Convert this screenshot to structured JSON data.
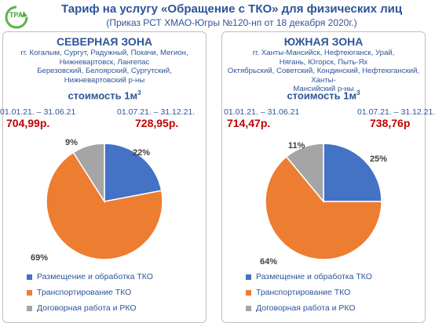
{
  "main": {
    "logo_text": "ТРА-",
    "page_title": "Тариф на услугу «Обращение с ТКО» для физических лиц",
    "subtitle": "(Приказ РСТ ХМАО-Югры №120-нп от 18 декабря 2020г.)"
  },
  "colors": {
    "text_blue": "#2e5597",
    "price_red": "#c00000",
    "slice_placement": "#4472c4",
    "slice_transport": "#ed7d31",
    "slice_contract": "#a5a5a5"
  },
  "left": {
    "zone_name": "СЕВЕРНАЯ ЗОНА",
    "cities": [
      "гг. Когалым, Сургут, Радужный, Покачи, Мегион,",
      "Нижневартовск, Лангепас",
      "Березовский, Белоярский, Сургутский,",
      "Нижневартовский р-ны"
    ],
    "cost_label": "стоимость 1м",
    "cost_unit_sup": "3",
    "period1": "01.01.21. – 31.06.21",
    "price1": "704,99р.",
    "period2": "01.07.21. – 31.12.21.",
    "price2": "728,95р."
  },
  "right": {
    "zone_name": "ЮЖНАЯ ЗОНА",
    "cities": [
      "гг. Ханты-Мансийск, Нефтеюганск, Урай,",
      "Нягань, Югорск, Пыть-Ях",
      "Октябрьский, Советский, Кондинский, Нефтеюганский, Ханты-",
      "Мансийский р-ны"
    ],
    "cost_label": "стоимость 1м",
    "cost_unit_sup": "3",
    "period1": "01.01.21. – 31.06.21",
    "price1": "714,47р.",
    "period2": "01.07.21. – 31.12.21.",
    "price2": "738,76р"
  },
  "chart_data": [
    {
      "type": "pie",
      "categories": [
        "Размещение и обработка ТКО",
        "Транспортирование ТКО",
        "Договорная работа и РКО"
      ],
      "values": [
        22,
        69,
        9
      ],
      "labels": [
        "22%",
        "69%",
        "9%"
      ],
      "legend_position": "bottom"
    },
    {
      "type": "pie",
      "categories": [
        "Размещение и обработка ТКО",
        "Транспортирование ТКО",
        "Договорная работа и РКО"
      ],
      "values": [
        25,
        64,
        11
      ],
      "labels": [
        "25%",
        "64%",
        "11%"
      ],
      "legend_position": "bottom"
    }
  ]
}
